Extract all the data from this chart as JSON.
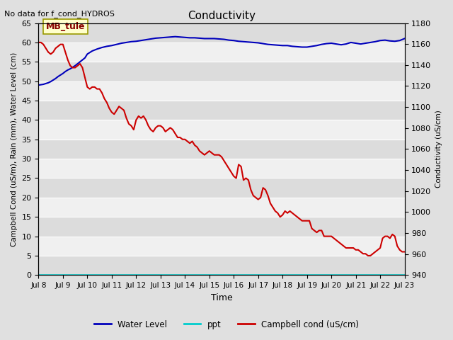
{
  "title": "Conductivity",
  "top_left_text": "No data for f_cond_HYDROS",
  "xlabel": "Time",
  "ylabel_left": "Campbell Cond (uS/m), Rain (mm), Water Level (cm)",
  "ylabel_right": "Conductivity (uS/cm)",
  "ylim_left": [
    0,
    65
  ],
  "ylim_right": [
    940,
    1180
  ],
  "x_tick_labels": [
    "Jul 8",
    "Jul 9",
    "Jul 10",
    "Jul 11",
    "Jul 12",
    "Jul 13",
    "Jul 14",
    "Jul 15",
    "Jul 16",
    "Jul 17",
    "Jul 18",
    "Jul 19",
    "Jul 20",
    "Jul 21",
    "Jul 22",
    "Jul 23"
  ],
  "yticks_left": [
    0,
    5,
    10,
    15,
    20,
    25,
    30,
    35,
    40,
    45,
    50,
    55,
    60,
    65
  ],
  "yticks_right": [
    940,
    960,
    980,
    1000,
    1020,
    1040,
    1060,
    1080,
    1100,
    1120,
    1140,
    1160,
    1180
  ],
  "fig_bg_color": "#e0e0e0",
  "plot_bg_color_light": "#f0f0f0",
  "plot_bg_color_dark": "#dcdcdc",
  "grid_color": "#ffffff",
  "annotation_box_text": "MB_tule",
  "annotation_box_color": "#ffffcc",
  "annotation_box_edgecolor": "#999900",
  "water_level_color": "#0000bb",
  "ppt_color": "#00cccc",
  "campbell_color": "#cc0000",
  "water_level_x": [
    0.0,
    0.1,
    0.2,
    0.3,
    0.4,
    0.5,
    0.6,
    0.7,
    0.8,
    0.9,
    1.0,
    1.1,
    1.2,
    1.3,
    1.4,
    1.5,
    1.6,
    1.7,
    1.8,
    1.9,
    2.0,
    2.2,
    2.4,
    2.6,
    2.8,
    3.0,
    3.2,
    3.4,
    3.6,
    3.8,
    4.0,
    4.2,
    4.4,
    4.6,
    4.8,
    5.0,
    5.2,
    5.4,
    5.6,
    5.8,
    6.0,
    6.2,
    6.4,
    6.6,
    6.8,
    7.0,
    7.2,
    7.4,
    7.6,
    7.8,
    8.0,
    8.2,
    8.4,
    8.6,
    8.8,
    9.0,
    9.2,
    9.4,
    9.6,
    9.8,
    10.0,
    10.2,
    10.4,
    10.6,
    10.8,
    11.0,
    11.2,
    11.4,
    11.6,
    11.8,
    12.0,
    12.2,
    12.4,
    12.6,
    12.8,
    13.0,
    13.2,
    13.4,
    13.6,
    13.8,
    14.0,
    14.2,
    14.4,
    14.6,
    14.8,
    15.0
  ],
  "water_level_y": [
    49.0,
    49.1,
    49.2,
    49.4,
    49.6,
    49.9,
    50.3,
    50.7,
    51.2,
    51.6,
    52.0,
    52.5,
    52.9,
    53.2,
    53.6,
    54.0,
    54.5,
    55.0,
    55.5,
    56.0,
    57.0,
    57.8,
    58.3,
    58.7,
    59.0,
    59.2,
    59.5,
    59.8,
    60.0,
    60.2,
    60.3,
    60.5,
    60.7,
    60.9,
    61.1,
    61.2,
    61.3,
    61.4,
    61.5,
    61.4,
    61.3,
    61.2,
    61.2,
    61.1,
    61.0,
    61.0,
    61.0,
    60.9,
    60.8,
    60.6,
    60.5,
    60.3,
    60.2,
    60.1,
    60.0,
    59.9,
    59.7,
    59.5,
    59.4,
    59.3,
    59.2,
    59.2,
    59.0,
    58.9,
    58.8,
    58.8,
    59.0,
    59.2,
    59.5,
    59.7,
    59.8,
    59.6,
    59.4,
    59.6,
    60.0,
    59.8,
    59.6,
    59.8,
    60.0,
    60.2,
    60.5,
    60.6,
    60.4,
    60.3,
    60.5,
    61.0
  ],
  "campbell_x": [
    0.0,
    0.1,
    0.2,
    0.3,
    0.4,
    0.5,
    0.6,
    0.7,
    0.8,
    0.9,
    1.0,
    1.1,
    1.2,
    1.3,
    1.4,
    1.5,
    1.6,
    1.7,
    1.8,
    1.9,
    2.0,
    2.1,
    2.2,
    2.3,
    2.4,
    2.5,
    2.6,
    2.7,
    2.8,
    2.9,
    3.0,
    3.1,
    3.2,
    3.3,
    3.4,
    3.5,
    3.6,
    3.7,
    3.8,
    3.9,
    4.0,
    4.1,
    4.2,
    4.3,
    4.4,
    4.5,
    4.6,
    4.7,
    4.8,
    4.9,
    5.0,
    5.1,
    5.2,
    5.3,
    5.4,
    5.5,
    5.6,
    5.7,
    5.8,
    5.9,
    6.0,
    6.1,
    6.2,
    6.3,
    6.4,
    6.5,
    6.6,
    6.7,
    6.8,
    6.9,
    7.0,
    7.1,
    7.2,
    7.3,
    7.4,
    7.5,
    7.6,
    7.7,
    7.8,
    7.9,
    8.0,
    8.1,
    8.2,
    8.3,
    8.4,
    8.5,
    8.6,
    8.7,
    8.8,
    8.9,
    9.0,
    9.1,
    9.2,
    9.3,
    9.4,
    9.5,
    9.6,
    9.7,
    9.8,
    9.9,
    10.0,
    10.1,
    10.2,
    10.3,
    10.4,
    10.5,
    10.6,
    10.7,
    10.8,
    10.9,
    11.0,
    11.1,
    11.2,
    11.3,
    11.4,
    11.5,
    11.6,
    11.7,
    11.8,
    11.9,
    12.0,
    12.1,
    12.2,
    12.3,
    12.4,
    12.5,
    12.6,
    12.7,
    12.8,
    12.9,
    13.0,
    13.1,
    13.2,
    13.3,
    13.4,
    13.5,
    13.6,
    13.7,
    13.8,
    13.9,
    14.0,
    14.1,
    14.2,
    14.3,
    14.4,
    14.5,
    14.6,
    14.7,
    14.8,
    14.9,
    15.0
  ],
  "campbell_y": [
    60.0,
    60.0,
    59.5,
    58.5,
    57.5,
    57.0,
    57.5,
    58.5,
    59.0,
    59.5,
    59.5,
    57.5,
    55.5,
    54.0,
    53.5,
    53.5,
    54.0,
    54.5,
    53.5,
    51.0,
    48.5,
    48.0,
    48.5,
    48.5,
    48.0,
    48.0,
    47.0,
    45.5,
    44.5,
    43.0,
    42.0,
    41.5,
    42.5,
    43.5,
    43.0,
    42.5,
    40.5,
    39.0,
    38.5,
    37.5,
    40.0,
    41.0,
    40.5,
    41.0,
    40.0,
    38.5,
    37.5,
    37.0,
    38.0,
    38.5,
    38.5,
    38.0,
    37.0,
    37.5,
    38.0,
    37.5,
    36.5,
    35.5,
    35.5,
    35.0,
    35.0,
    34.5,
    34.0,
    34.5,
    33.5,
    33.0,
    32.0,
    31.5,
    31.0,
    31.5,
    32.0,
    31.5,
    31.0,
    31.0,
    31.0,
    30.5,
    29.5,
    28.5,
    27.5,
    26.5,
    25.5,
    25.0,
    28.5,
    28.0,
    24.5,
    25.0,
    24.5,
    22.0,
    20.5,
    20.0,
    19.5,
    20.0,
    22.5,
    22.0,
    20.5,
    18.5,
    17.5,
    16.5,
    16.0,
    15.0,
    15.5,
    16.5,
    16.0,
    16.5,
    16.0,
    15.5,
    15.0,
    14.5,
    14.0,
    14.0,
    14.0,
    14.0,
    12.0,
    11.5,
    11.0,
    11.5,
    11.5,
    10.0,
    10.0,
    10.0,
    10.0,
    9.5,
    9.0,
    8.5,
    8.0,
    7.5,
    7.0,
    7.0,
    7.0,
    7.0,
    6.5,
    6.5,
    6.0,
    5.5,
    5.5,
    5.0,
    5.0,
    5.5,
    6.0,
    6.5,
    7.0,
    9.5,
    10.0,
    10.0,
    9.5,
    10.5,
    10.0,
    7.5,
    6.5,
    6.0,
    6.0
  ],
  "legend_labels": [
    "Water Level",
    "ppt",
    "Campbell cond (uS/cm)"
  ],
  "legend_colors": [
    "#0000bb",
    "#00cccc",
    "#cc0000"
  ]
}
